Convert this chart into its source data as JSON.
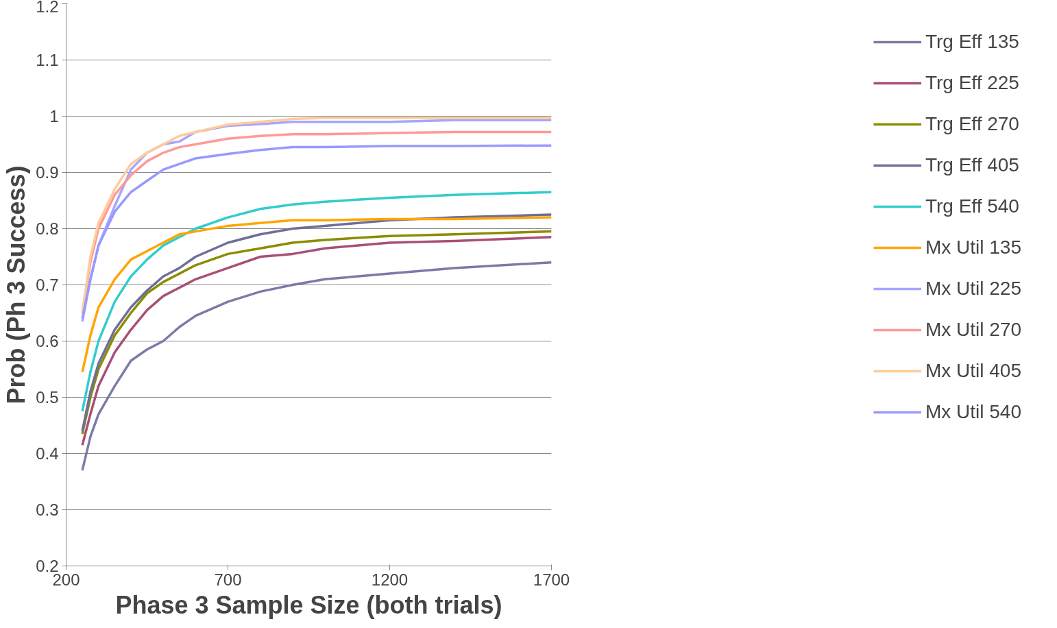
{
  "chart_data": {
    "type": "line",
    "xlabel": "Phase 3 Sample Size (both trials)",
    "ylabel": "Prob (Ph 3 Success)",
    "x": [
      250,
      275,
      300,
      350,
      400,
      450,
      500,
      550,
      600,
      700,
      800,
      900,
      1000,
      1200,
      1400,
      1700
    ],
    "xlim": [
      200,
      1700
    ],
    "xticks": [
      200,
      700,
      1200,
      1700
    ],
    "ylim": [
      0.2,
      1.2
    ],
    "yticks": [
      0.2,
      0.3,
      0.4,
      0.5,
      0.6,
      0.7,
      0.8,
      0.9,
      1,
      1.1,
      1.2
    ],
    "grid": "y",
    "legend": "right",
    "marker": "none",
    "line_style": "solid",
    "series": [
      {
        "name": "Trg Eff 135",
        "color": "#7b7ba8",
        "values": [
          0.37,
          0.43,
          0.47,
          0.52,
          0.565,
          0.585,
          0.6,
          0.625,
          0.645,
          0.67,
          0.688,
          0.7,
          0.71,
          0.72,
          0.73,
          0.74
        ]
      },
      {
        "name": "Trg Eff 225",
        "color": "#a94f77",
        "values": [
          0.415,
          0.47,
          0.52,
          0.58,
          0.62,
          0.655,
          0.68,
          0.695,
          0.71,
          0.73,
          0.75,
          0.755,
          0.765,
          0.775,
          0.778,
          0.785
        ]
      },
      {
        "name": "Trg Eff 270",
        "color": "#8c8c00",
        "values": [
          0.435,
          0.5,
          0.55,
          0.61,
          0.65,
          0.685,
          0.705,
          0.72,
          0.735,
          0.755,
          0.765,
          0.775,
          0.78,
          0.787,
          0.79,
          0.795
        ]
      },
      {
        "name": "Trg Eff 405",
        "color": "#6e6e99",
        "values": [
          0.44,
          0.51,
          0.56,
          0.62,
          0.66,
          0.69,
          0.715,
          0.73,
          0.75,
          0.775,
          0.79,
          0.8,
          0.805,
          0.815,
          0.82,
          0.825
        ]
      },
      {
        "name": "Trg Eff 540",
        "color": "#33cccc",
        "values": [
          0.475,
          0.545,
          0.6,
          0.67,
          0.715,
          0.745,
          0.77,
          0.785,
          0.8,
          0.82,
          0.835,
          0.843,
          0.848,
          0.855,
          0.86,
          0.865
        ]
      },
      {
        "name": "Mx Util 135",
        "color": "#ffa500",
        "values": [
          0.545,
          0.61,
          0.66,
          0.71,
          0.745,
          0.76,
          0.775,
          0.79,
          0.795,
          0.805,
          0.81,
          0.815,
          0.815,
          0.817,
          0.817,
          0.82
        ]
      },
      {
        "name": "Mx Util 225",
        "color": "#a6a6ff",
        "values": [
          0.635,
          0.71,
          0.77,
          0.84,
          0.905,
          0.935,
          0.95,
          0.955,
          0.972,
          0.983,
          0.986,
          0.99,
          0.99,
          0.99,
          0.993,
          0.993
        ]
      },
      {
        "name": "Mx Util 270",
        "color": "#ff9999",
        "values": [
          0.65,
          0.74,
          0.8,
          0.86,
          0.895,
          0.92,
          0.935,
          0.945,
          0.95,
          0.96,
          0.965,
          0.968,
          0.968,
          0.97,
          0.972,
          0.972
        ]
      },
      {
        "name": "Mx Util 405",
        "color": "#ffcc99",
        "values": [
          0.65,
          0.75,
          0.81,
          0.87,
          0.915,
          0.935,
          0.95,
          0.965,
          0.972,
          0.985,
          0.99,
          0.995,
          0.997,
          0.997,
          0.997,
          0.997
        ]
      },
      {
        "name": "Mx Util 540",
        "color": "#9999ff",
        "values": [
          0.64,
          0.71,
          0.77,
          0.83,
          0.865,
          0.885,
          0.905,
          0.915,
          0.925,
          0.933,
          0.94,
          0.945,
          0.945,
          0.947,
          0.947,
          0.948
        ]
      }
    ]
  }
}
